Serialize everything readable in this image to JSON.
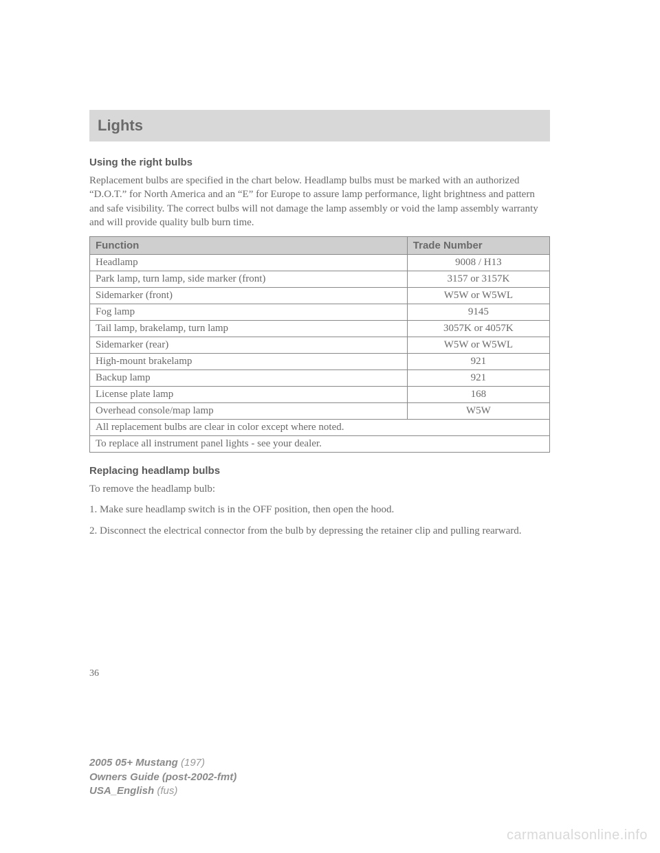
{
  "header": {
    "title": "Lights"
  },
  "section1": {
    "title": "Using the right bulbs",
    "intro": "Replacement bulbs are specified in the chart below. Headlamp bulbs must be marked with an authorized “D.O.T.” for North America and an “E” for Europe to assure lamp performance, light brightness and pattern and safe visibility. The correct bulbs will not damage the lamp assembly or void the lamp assembly warranty and will provide quality bulb burn time."
  },
  "table": {
    "headers": {
      "function": "Function",
      "trade": "Trade Number"
    },
    "rows": [
      {
        "function": "Headlamp",
        "trade": "9008 / H13"
      },
      {
        "function": "Park lamp, turn lamp, side marker (front)",
        "trade": "3157 or 3157K"
      },
      {
        "function": "Sidemarker (front)",
        "trade": "W5W or W5WL"
      },
      {
        "function": "Fog lamp",
        "trade": "9145"
      },
      {
        "function": "Tail lamp, brakelamp, turn lamp",
        "trade": "3057K or 4057K"
      },
      {
        "function": "Sidemarker (rear)",
        "trade": "W5W or W5WL"
      },
      {
        "function": "High-mount brakelamp",
        "trade": "921"
      },
      {
        "function": "Backup lamp",
        "trade": "921"
      },
      {
        "function": "License plate lamp",
        "trade": "168"
      },
      {
        "function": "Overhead console/map lamp",
        "trade": "W5W"
      }
    ],
    "note1": "All replacement bulbs are clear in color except where noted.",
    "note2": "To replace all instrument panel lights - see your dealer."
  },
  "section2": {
    "title": "Replacing headlamp bulbs",
    "line1": "To remove the headlamp bulb:",
    "step1": "1. Make sure headlamp switch is in the OFF position, then open the hood.",
    "step2": "2. Disconnect the electrical connector from the bulb by depressing the retainer clip and pulling rearward."
  },
  "pageNumber": "36",
  "footer": {
    "line1_bold": "2005 05+ Mustang ",
    "line1_reg": "(197)",
    "line2": "Owners Guide (post-2002-fmt)",
    "line3_bold": "USA_English ",
    "line3_reg": "(fus)"
  },
  "watermark": "carmanualsonline.info"
}
